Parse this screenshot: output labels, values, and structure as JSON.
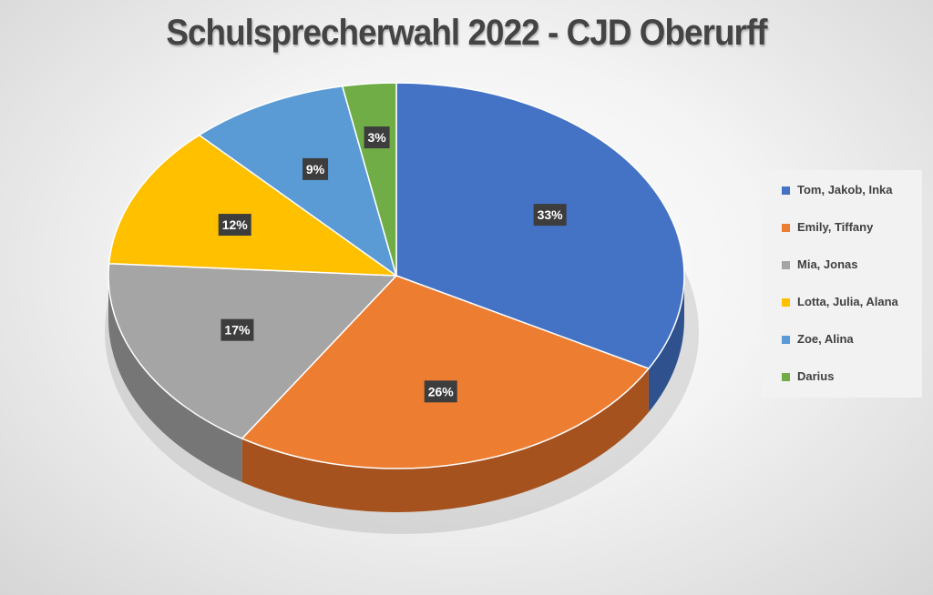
{
  "chart_data": {
    "type": "pie",
    "title": "Schulsprecherwahl 2022 - CJD Oberurff",
    "style": "3d",
    "legend_position": "right",
    "slices": [
      {
        "label": "Tom, Jakob, Inka",
        "value": 33,
        "display": "33%",
        "color": "#4472C4",
        "side_color": "#2F528F"
      },
      {
        "label": "Emily, Tiffany",
        "value": 26,
        "display": "26%",
        "color": "#ED7D31",
        "side_color": "#A5521E"
      },
      {
        "label": "Mia, Jonas",
        "value": 17,
        "display": "17%",
        "color": "#A5A5A5",
        "side_color": "#767676"
      },
      {
        "label": "Lotta, Julia, Alana",
        "value": 12,
        "display": "12%",
        "color": "#FFC000",
        "side_color": "#B38600"
      },
      {
        "label": "Zoe, Alina",
        "value": 9,
        "display": "9%",
        "color": "#5B9BD5",
        "side_color": "#3F6E99"
      },
      {
        "label": "Darius",
        "value": 3,
        "display": "3%",
        "color": "#70AD47",
        "side_color": "#4E7A31"
      }
    ]
  }
}
